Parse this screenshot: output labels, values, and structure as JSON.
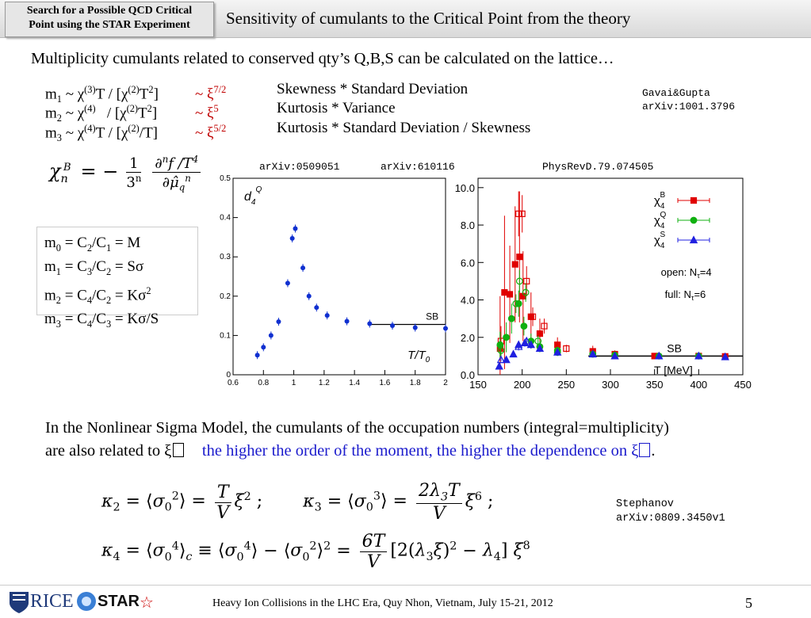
{
  "header": {
    "box_line1": "Search for a Possible QCD Critical",
    "box_line2": "Point using the STAR Experiment",
    "title": "Sensitivity of cumulants to the Critical Point from the theory"
  },
  "intro": "Multiplicity cumulants related to conserved qty’s Q,B,S can be calculated on the lattice…",
  "moments": [
    {
      "m": "m",
      "sub": "1",
      "rel": " ~ χ",
      "rel_sup": "(3)",
      "rel2": "T / [χ",
      "rel2_sup": "(2)",
      "rel3": "T",
      "rel3_sup": "2",
      "rel4": "]",
      "xi": "~ ξ",
      "xi_sup": "7/2",
      "desc": "Skewness * Standard Deviation"
    },
    {
      "m": "m",
      "sub": "2",
      "rel": " ~ χ",
      "rel_sup": "(4)",
      "rel2": "   / [χ",
      "rel2_sup": "(2)",
      "rel3": "T",
      "rel3_sup": "2",
      "rel4": "]",
      "xi": "~ ξ",
      "xi_sup": "5",
      "desc": "Kurtosis * Variance"
    },
    {
      "m": "m",
      "sub": "3",
      "rel": " ~ χ",
      "rel_sup": "(4)",
      "rel2": "T / [χ",
      "rel2_sup": "(2)",
      "rel3": "/T]",
      "rel3_sup": "",
      "rel4": "",
      "xi": "~ ξ",
      "xi_sup": "5/2",
      "desc": "Kurtosis * Standard Deviation / Skewness"
    }
  ],
  "refs": {
    "gavai1": "Gavai&Gupta",
    "gavai2": "arXiv:1001.3796",
    "chart_ref1": "arXiv:0509051",
    "chart_ref2": "arXiv:610116",
    "chart_ref3": "PhysRevD.79.074505",
    "steph1": "Stephanov",
    "steph2": "arXiv:0809.3450v1"
  },
  "box": [
    {
      "a": "m",
      "as": "0",
      "b": " = C",
      "bs": "2",
      "c": "/C",
      "cs": "1",
      "d": " = M",
      "ds": ""
    },
    {
      "a": "m",
      "as": "1",
      "b": " = C",
      "bs": "3",
      "c": "/C",
      "cs": "2",
      "d": " = Sσ",
      "ds": ""
    },
    {
      "a": "m",
      "as": "2",
      "b": " = C",
      "bs": "4",
      "c": "/C",
      "cs": "2",
      "d": " = Kσ",
      "ds": "2"
    },
    {
      "a": "m",
      "as": "3",
      "b": " = C",
      "bs": "4",
      "c": "/C",
      "cs": "3",
      "d": " = Kσ/S",
      "ds": ""
    }
  ],
  "para_line1": "In the Nonlinear Sigma Model, the cumulants of the occupation numbers (integral=multiplicity)",
  "para_line2_a": "are also related to ξ",
  "para_line2_b": "the higher the order of the moment, the higher the dependence on ξ",
  "para_line2_c": ".",
  "footer": {
    "rice": "RICE",
    "star": "STAR",
    "text": "Heavy Ion Collisions in the LHC Era, Quy Nhon, Vietnam, July 15-21, 2012",
    "page": "5"
  },
  "chart_data": [
    {
      "type": "scatter",
      "label": "d",
      "label_sub": "4",
      "label_sup": "Q",
      "xlabel": "T/T",
      "xlabel_sub": "0",
      "xlim": [
        0.6,
        2.0
      ],
      "ylim": [
        0,
        0.5
      ],
      "xticks": [
        "0.6",
        "0.8",
        "1",
        "1.2",
        "1.4",
        "1.6",
        "1.8",
        "2"
      ],
      "yticks": [
        "0",
        "0.1",
        "0.2",
        "0.3",
        "0.4",
        "0.5"
      ],
      "sb_label": "SB",
      "sb_value": 0.128,
      "sb_from": 1.5,
      "points": [
        {
          "x": 0.76,
          "y": 0.05
        },
        {
          "x": 0.8,
          "y": 0.07
        },
        {
          "x": 0.85,
          "y": 0.1
        },
        {
          "x": 0.9,
          "y": 0.135
        },
        {
          "x": 0.96,
          "y": 0.233
        },
        {
          "x": 0.99,
          "y": 0.347
        },
        {
          "x": 1.01,
          "y": 0.372
        },
        {
          "x": 1.06,
          "y": 0.272
        },
        {
          "x": 1.1,
          "y": 0.2
        },
        {
          "x": 1.15,
          "y": 0.171
        },
        {
          "x": 1.22,
          "y": 0.151
        },
        {
          "x": 1.35,
          "y": 0.136
        },
        {
          "x": 1.5,
          "y": 0.13
        },
        {
          "x": 1.65,
          "y": 0.125
        },
        {
          "x": 1.8,
          "y": 0.12
        },
        {
          "x": 2.0,
          "y": 0.118
        }
      ],
      "color": "#1030d0"
    },
    {
      "type": "scatter",
      "xlabel": "T [MeV]",
      "xlim": [
        150,
        450
      ],
      "ylim": [
        0,
        10.5
      ],
      "xticks": [
        "150",
        "200",
        "250",
        "300",
        "350",
        "400",
        "450"
      ],
      "yticks": [
        "0.0",
        "2.0",
        "4.0",
        "6.0",
        "8.0",
        "10.0"
      ],
      "sb_label": "SB",
      "sb_value": 1.0,
      "sb_from": 275,
      "legend_position": "top-right",
      "annotation1": "open: N",
      "annotation1_sub": "τ",
      "annotation1_tail": "=4",
      "annotation2": "full: N",
      "annotation2_sub": "τ",
      "annotation2_tail": "=6",
      "series": [
        {
          "name": "χ",
          "name_sub": "4",
          "name_sup": "B",
          "color": "#e00000",
          "marker": "square",
          "full": [
            {
              "x": 175,
              "y": 1.4,
              "e": 2.8
            },
            {
              "x": 180,
              "y": 4.4,
              "e": 4.1
            },
            {
              "x": 186,
              "y": 4.3,
              "e": 2.6
            },
            {
              "x": 192,
              "y": 5.9,
              "e": 3.1
            },
            {
              "x": 197,
              "y": 6.3,
              "e": 3.5
            },
            {
              "x": 201,
              "y": 4.2,
              "e": 2.4
            },
            {
              "x": 210,
              "y": 3.1,
              "e": 1.3
            },
            {
              "x": 220,
              "y": 2.2,
              "e": 0.8
            },
            {
              "x": 240,
              "y": 1.6,
              "e": 0.4
            },
            {
              "x": 280,
              "y": 1.25,
              "e": 0.3
            },
            {
              "x": 305,
              "y": 1.1,
              "e": 0.2
            },
            {
              "x": 350,
              "y": 1.0,
              "e": 0.15
            },
            {
              "x": 400,
              "y": 1.0,
              "e": 0.1
            },
            {
              "x": 430,
              "y": 0.98,
              "e": 0.1
            }
          ],
          "open": [
            {
              "x": 176,
              "y": 1.8,
              "e": 0.8
            },
            {
              "x": 196,
              "y": 8.6,
              "e": 1.2
            },
            {
              "x": 200,
              "y": 8.6,
              "e": 1.0
            },
            {
              "x": 205,
              "y": 5.0,
              "e": 0.8
            },
            {
              "x": 212,
              "y": 3.1,
              "e": 0.5
            },
            {
              "x": 225,
              "y": 2.6,
              "e": 0.4
            },
            {
              "x": 250,
              "y": 1.4,
              "e": 0.2
            }
          ]
        },
        {
          "name": "χ",
          "name_sub": "4",
          "name_sup": "Q",
          "color": "#10b010",
          "marker": "circle",
          "full": [
            {
              "x": 175,
              "y": 1.6,
              "e": 0.7
            },
            {
              "x": 182,
              "y": 2.0,
              "e": 0.8
            },
            {
              "x": 188,
              "y": 3.0,
              "e": 0.8
            },
            {
              "x": 196,
              "y": 3.8,
              "e": 0.7
            },
            {
              "x": 202,
              "y": 2.6,
              "e": 0.5
            },
            {
              "x": 210,
              "y": 1.8,
              "e": 0.4
            },
            {
              "x": 220,
              "y": 1.5,
              "e": 0.3
            },
            {
              "x": 240,
              "y": 1.3,
              "e": 0.2
            },
            {
              "x": 280,
              "y": 1.1,
              "e": 0.15
            },
            {
              "x": 305,
              "y": 1.05,
              "e": 0.1
            },
            {
              "x": 355,
              "y": 1.0,
              "e": 0.08
            },
            {
              "x": 400,
              "y": 1.0,
              "e": 0.05
            }
          ],
          "open": [
            {
              "x": 176,
              "y": 1.3,
              "e": 0.4
            },
            {
              "x": 193,
              "y": 3.8,
              "e": 0.5
            },
            {
              "x": 197,
              "y": 5.0,
              "e": 0.6
            },
            {
              "x": 204,
              "y": 4.4,
              "e": 0.5
            },
            {
              "x": 218,
              "y": 1.8,
              "e": 0.3
            },
            {
              "x": 240,
              "y": 1.2,
              "e": 0.2
            }
          ]
        },
        {
          "name": "χ",
          "name_sub": "4",
          "name_sup": "S",
          "color": "#2020e0",
          "marker": "triangle",
          "full": [
            {
              "x": 174,
              "y": 0.45,
              "e": 0.1
            },
            {
              "x": 182,
              "y": 0.8,
              "e": 0.1
            },
            {
              "x": 190,
              "y": 1.1,
              "e": 0.15
            },
            {
              "x": 196,
              "y": 1.6,
              "e": 0.2
            },
            {
              "x": 203,
              "y": 1.7,
              "e": 0.2
            },
            {
              "x": 210,
              "y": 1.6,
              "e": 0.2
            },
            {
              "x": 220,
              "y": 1.4,
              "e": 0.15
            },
            {
              "x": 240,
              "y": 1.2,
              "e": 0.1
            },
            {
              "x": 280,
              "y": 1.1,
              "e": 0.1
            },
            {
              "x": 305,
              "y": 1.0,
              "e": 0.08
            },
            {
              "x": 355,
              "y": 1.0,
              "e": 0.05
            },
            {
              "x": 400,
              "y": 1.0,
              "e": 0.05
            },
            {
              "x": 430,
              "y": 0.95,
              "e": 0.05
            }
          ],
          "open": [
            {
              "x": 176,
              "y": 0.8,
              "e": 0.1
            },
            {
              "x": 196,
              "y": 1.5,
              "e": 0.2
            },
            {
              "x": 205,
              "y": 1.8,
              "e": 0.2
            }
          ]
        }
      ]
    }
  ]
}
